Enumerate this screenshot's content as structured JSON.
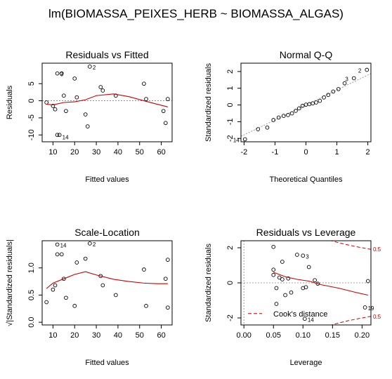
{
  "figure_title": "lm(BIOMASSA_PEIXES_HERB ~ BIOMASSA_ALGAS)",
  "colors": {
    "smooth": "#cc0000",
    "refline": "#808080",
    "cook": "#cc0000",
    "point": "#000000"
  },
  "chart_data": [
    {
      "type": "scatter",
      "title": "Residuals vs Fitted",
      "xlabel": "Fitted values",
      "ylabel": "Residuals",
      "xlim": [
        5,
        65
      ],
      "ylim": [
        -12,
        11
      ],
      "xticks": [
        10,
        20,
        30,
        40,
        50,
        60
      ],
      "yticks": [
        -10,
        -5,
        0,
        5
      ],
      "hline": 0,
      "points": [
        {
          "x": 7,
          "y": -0.5
        },
        {
          "x": 10,
          "y": -1.5
        },
        {
          "x": 11,
          "y": -2.5
        },
        {
          "x": 12,
          "y": 8,
          "label": "3"
        },
        {
          "x": 12,
          "y": -10
        },
        {
          "x": 13,
          "y": -10,
          "label": "14"
        },
        {
          "x": 14,
          "y": 8
        },
        {
          "x": 15,
          "y": 1.5
        },
        {
          "x": 16,
          "y": -3
        },
        {
          "x": 20,
          "y": 6.5
        },
        {
          "x": 21,
          "y": 1
        },
        {
          "x": 25,
          "y": -4
        },
        {
          "x": 26,
          "y": -7.5
        },
        {
          "x": 27,
          "y": 10,
          "label": "2"
        },
        {
          "x": 32,
          "y": 4
        },
        {
          "x": 33,
          "y": 3
        },
        {
          "x": 39,
          "y": 1.5
        },
        {
          "x": 52,
          "y": 5
        },
        {
          "x": 53,
          "y": 0.5
        },
        {
          "x": 61,
          "y": -3
        },
        {
          "x": 62,
          "y": -6.5
        },
        {
          "x": 63,
          "y": 0.5
        }
      ],
      "smooth": [
        [
          7,
          -1
        ],
        [
          10,
          -1.2
        ],
        [
          15,
          -0.5
        ],
        [
          20,
          -0.3
        ],
        [
          25,
          0.3
        ],
        [
          30,
          1.5
        ],
        [
          38,
          2
        ],
        [
          45,
          1.2
        ],
        [
          52,
          0
        ],
        [
          58,
          -1
        ],
        [
          63,
          -1.8
        ]
      ]
    },
    {
      "type": "scatter",
      "title": "Normal Q-Q",
      "xlabel": "Theoretical Quantiles",
      "ylabel": "Standardized residuals",
      "xlim": [
        -2.1,
        2.1
      ],
      "ylim": [
        -2.2,
        2.5
      ],
      "xticks": [
        -2,
        -1,
        0,
        1,
        2
      ],
      "yticks": [
        -2,
        -1,
        0,
        1,
        2
      ],
      "refline": [
        [
          -2.1,
          -1.88
        ],
        [
          2.1,
          1.88
        ]
      ],
      "points": [
        {
          "x": -1.97,
          "y": -2.05,
          "label": "14"
        },
        {
          "x": -1.55,
          "y": -1.45
        },
        {
          "x": -1.25,
          "y": -1.35
        },
        {
          "x": -1.05,
          "y": -0.9
        },
        {
          "x": -0.88,
          "y": -0.75
        },
        {
          "x": -0.72,
          "y": -0.65
        },
        {
          "x": -0.58,
          "y": -0.6
        },
        {
          "x": -0.45,
          "y": -0.5
        },
        {
          "x": -0.33,
          "y": -0.35
        },
        {
          "x": -0.22,
          "y": -0.2
        },
        {
          "x": -0.11,
          "y": -0.05
        },
        {
          "x": 0,
          "y": 0.02
        },
        {
          "x": 0.11,
          "y": 0.05
        },
        {
          "x": 0.22,
          "y": 0.1
        },
        {
          "x": 0.33,
          "y": 0.15
        },
        {
          "x": 0.45,
          "y": 0.25
        },
        {
          "x": 0.58,
          "y": 0.45
        },
        {
          "x": 0.72,
          "y": 0.6
        },
        {
          "x": 0.88,
          "y": 0.8
        },
        {
          "x": 1.05,
          "y": 0.95
        },
        {
          "x": 1.25,
          "y": 1.3
        },
        {
          "x": 1.55,
          "y": 1.6,
          "label": "3"
        },
        {
          "x": 1.97,
          "y": 2.1,
          "label": "2"
        }
      ]
    },
    {
      "type": "scatter",
      "title": "Scale-Location",
      "xlabel": "Fitted values",
      "ylabel": "√|Standardized residuals|",
      "xlim": [
        5,
        65
      ],
      "ylim": [
        -0.05,
        1.5
      ],
      "xticks": [
        10,
        20,
        30,
        40,
        50,
        60
      ],
      "yticks": [
        0.0,
        0.5,
        1.0
      ],
      "points": [
        {
          "x": 7,
          "y": 0.37
        },
        {
          "x": 10,
          "y": 0.6
        },
        {
          "x": 11,
          "y": 0.68
        },
        {
          "x": 12,
          "y": 1.43,
          "label": "14"
        },
        {
          "x": 12,
          "y": 1.25
        },
        {
          "x": 14,
          "y": 1.25
        },
        {
          "x": 15,
          "y": 0.8
        },
        {
          "x": 16,
          "y": 0.45
        },
        {
          "x": 20,
          "y": 0.3
        },
        {
          "x": 21,
          "y": 1.1
        },
        {
          "x": 25,
          "y": 1.17
        },
        {
          "x": 27,
          "y": 1.45,
          "label": "2"
        },
        {
          "x": 32,
          "y": 0.85
        },
        {
          "x": 33,
          "y": 0.68
        },
        {
          "x": 39,
          "y": 0.5
        },
        {
          "x": 52,
          "y": 0.97
        },
        {
          "x": 53,
          "y": 0.3
        },
        {
          "x": 62,
          "y": 0.8
        },
        {
          "x": 63,
          "y": 1.15
        },
        {
          "x": 63,
          "y": 0.27
        }
      ],
      "smooth": [
        [
          7,
          0.62
        ],
        [
          10,
          0.72
        ],
        [
          15,
          0.8
        ],
        [
          20,
          0.88
        ],
        [
          25,
          0.93
        ],
        [
          30,
          0.87
        ],
        [
          38,
          0.79
        ],
        [
          45,
          0.75
        ],
        [
          52,
          0.72
        ],
        [
          58,
          0.71
        ],
        [
          63,
          0.71
        ]
      ]
    },
    {
      "type": "scatter",
      "title": "Residuals vs Leverage",
      "xlabel": "Leverage",
      "ylabel": "Standardized residuals",
      "xlim": [
        -0.005,
        0.215
      ],
      "ylim": [
        -2.4,
        2.4
      ],
      "xticks": [
        0.0,
        0.05,
        0.1,
        0.15,
        0.2
      ],
      "xtick_labels": [
        "0.00",
        "0.05",
        "0.10",
        "0.15",
        "0.20"
      ],
      "yticks": [
        -2,
        0,
        2
      ],
      "hline": 0,
      "vline": 0,
      "cook_level": "0.5",
      "legend": "Cook's distance",
      "points": [
        {
          "x": 0.05,
          "y": 2.05
        },
        {
          "x": 0.05,
          "y": 0.75
        },
        {
          "x": 0.05,
          "y": 0.45
        },
        {
          "x": 0.055,
          "y": -0.3
        },
        {
          "x": 0.055,
          "y": -1.2
        },
        {
          "x": 0.06,
          "y": 0.3
        },
        {
          "x": 0.065,
          "y": 1.2
        },
        {
          "x": 0.065,
          "y": 0.2
        },
        {
          "x": 0.07,
          "y": -0.7
        },
        {
          "x": 0.075,
          "y": 0.25
        },
        {
          "x": 0.08,
          "y": -0.55
        },
        {
          "x": 0.09,
          "y": 1.6
        },
        {
          "x": 0.1,
          "y": 1.55,
          "label": "3"
        },
        {
          "x": 0.1,
          "y": -0.3
        },
        {
          "x": 0.103,
          "y": -2.05,
          "label": "14"
        },
        {
          "x": 0.105,
          "y": -0.25
        },
        {
          "x": 0.11,
          "y": 0.9
        },
        {
          "x": 0.12,
          "y": 0.15
        },
        {
          "x": 0.125,
          "y": -0.05
        },
        {
          "x": 0.205,
          "y": -1.4,
          "label": "19"
        },
        {
          "x": 0.21,
          "y": 0.1
        }
      ],
      "smooth": [
        [
          0.05,
          0.6
        ],
        [
          0.07,
          0.35
        ],
        [
          0.09,
          0.2
        ],
        [
          0.11,
          0.1
        ],
        [
          0.13,
          -0.1
        ],
        [
          0.16,
          -0.3
        ],
        [
          0.19,
          -0.55
        ],
        [
          0.21,
          -0.7
        ]
      ]
    }
  ]
}
